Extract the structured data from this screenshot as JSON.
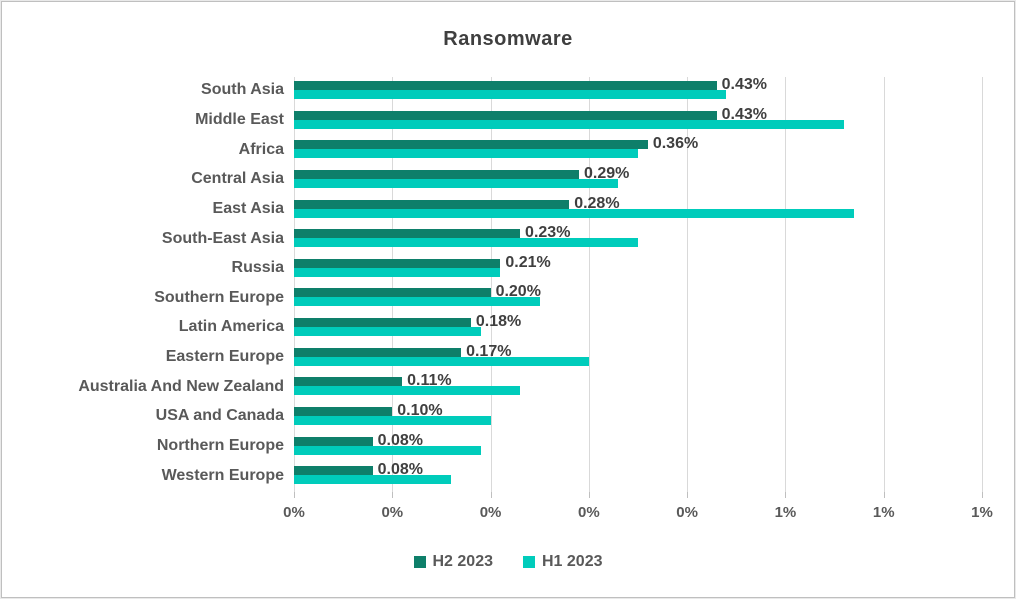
{
  "frame": {
    "background_color": "#ffffff",
    "border_color": "#bfbfbf"
  },
  "chart_data": {
    "type": "bar",
    "orientation": "horizontal",
    "title": "Ransomware",
    "title_color": "#3f3f3f",
    "categories": [
      "South Asia",
      "Middle East",
      "Africa",
      "Central Asia",
      "East Asia",
      "South-East Asia",
      "Russia",
      "Southern Europe",
      "Latin America",
      "Eastern Europe",
      "Australia And New Zealand",
      "USA and Canada",
      "Northern Europe",
      "Western Europe"
    ],
    "series": [
      {
        "name": "H2 2023",
        "color": "#0e7f6a",
        "values": [
          0.43,
          0.43,
          0.36,
          0.29,
          0.28,
          0.23,
          0.21,
          0.2,
          0.18,
          0.17,
          0.11,
          0.1,
          0.08,
          0.08
        ],
        "data_labels": [
          "0.43%",
          "0.43%",
          "0.36%",
          "0.29%",
          "0.28%",
          "0.23%",
          "0.21%",
          "0.20%",
          "0.18%",
          "0.17%",
          "0.11%",
          "0.10%",
          "0.08%",
          "0.08%"
        ]
      },
      {
        "name": "H1 2023",
        "color": "#00ccbb",
        "values": [
          0.44,
          0.56,
          0.35,
          0.33,
          0.57,
          0.35,
          0.21,
          0.25,
          0.19,
          0.3,
          0.23,
          0.2,
          0.19,
          0.16
        ],
        "data_labels": null
      }
    ],
    "x_axis": {
      "min": 0,
      "max": 0.7,
      "tick_step": 0.1,
      "tick_labels": [
        "0%",
        "0%",
        "0%",
        "0%",
        "0%",
        "1%",
        "1%",
        "1%"
      ],
      "label_color": "#595959"
    },
    "y_axis": {
      "label_color": "#595959"
    },
    "grid": true,
    "gridline_color": "#d9d9d9",
    "tick_mark_color": "#bfbfbf",
    "data_label_color": "#3f3f3f",
    "legend_position": "bottom"
  }
}
